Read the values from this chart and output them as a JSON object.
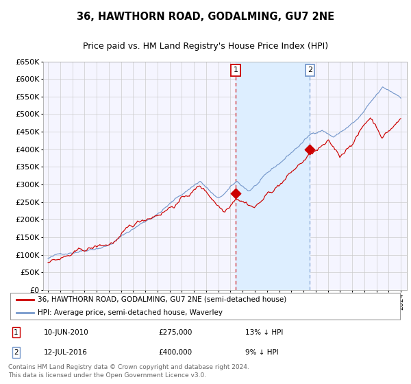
{
  "title": "36, HAWTHORN ROAD, GODALMING, GU7 2NE",
  "subtitle": "Price paid vs. HM Land Registry's House Price Index (HPI)",
  "x_start_year": 1995,
  "x_end_year": 2024,
  "y_min": 0,
  "y_max": 650000,
  "y_ticks": [
    0,
    50000,
    100000,
    150000,
    200000,
    250000,
    300000,
    350000,
    400000,
    450000,
    500000,
    550000,
    600000,
    650000
  ],
  "hpi_color": "#7799cc",
  "price_color": "#cc0000",
  "grid_color": "#cccccc",
  "bg_color": "#ffffff",
  "plot_bg": "#f5f5ff",
  "shaded_region_color": "#ddeeff",
  "transaction1_date": 2010.44,
  "transaction1_price": 275000,
  "transaction2_date": 2016.53,
  "transaction2_price": 400000,
  "legend_label_price": "36, HAWTHORN ROAD, GODALMING, GU7 2NE (semi-detached house)",
  "legend_label_hpi": "HPI: Average price, semi-detached house, Waverley",
  "footer": "Contains HM Land Registry data © Crown copyright and database right 2024.\nThis data is licensed under the Open Government Licence v3.0.",
  "title_fontsize": 10.5,
  "subtitle_fontsize": 9,
  "axis_fontsize": 8,
  "legend_fontsize": 8,
  "footer_fontsize": 6.5
}
